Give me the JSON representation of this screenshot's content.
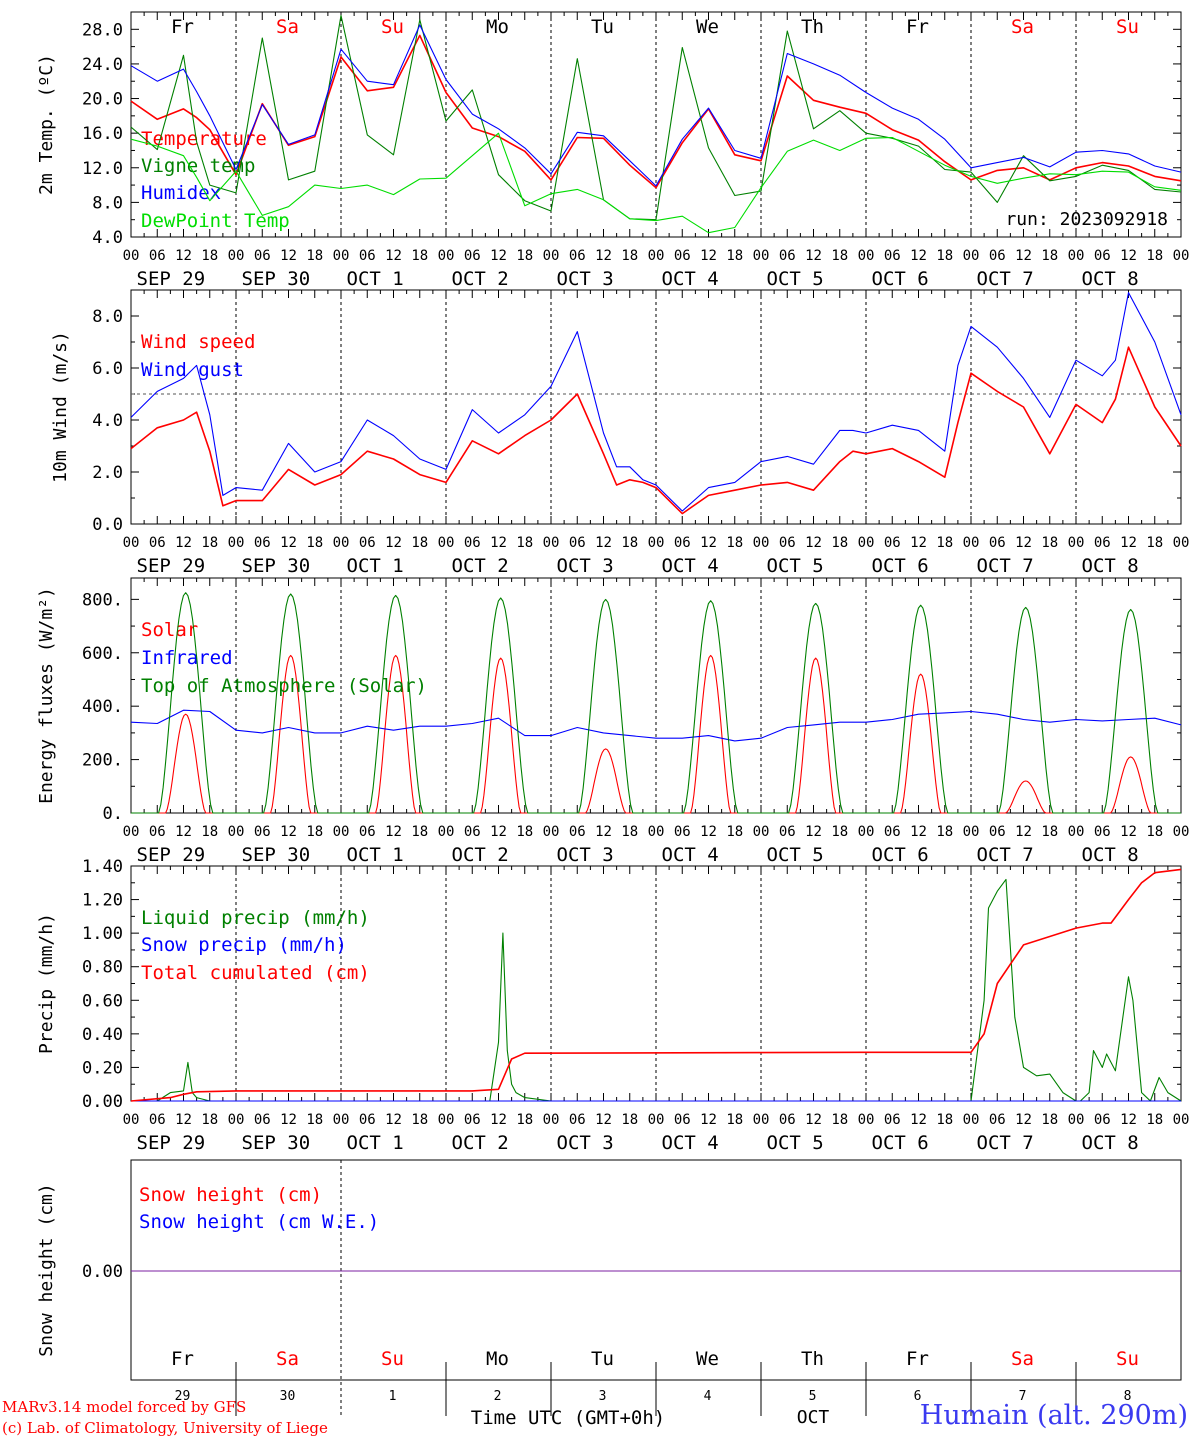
{
  "run_label": "run: 2023092918",
  "footer": {
    "credit1": "MARv3.14 model forced by GFS",
    "credit2": "(c) Lab. of Climatology, University of Liege",
    "time_axis_label": "Time UTC (GMT+0h)",
    "month_label": "OCT",
    "station": "Humain (alt. 290m)"
  },
  "colors": {
    "red": "#ff0000",
    "green": "#008000",
    "blue": "#0000ff",
    "lightgreen": "#00dd00",
    "weekend": "#ff0000",
    "weekday": "#000000",
    "snow_line": "#7b1fa2"
  },
  "days": [
    {
      "dow": "Fr",
      "date": "SEP 29",
      "num": "29",
      "weekend": false
    },
    {
      "dow": "Sa",
      "date": "SEP 30",
      "num": "30",
      "weekend": true
    },
    {
      "dow": "Su",
      "date": "OCT  1",
      "num": "1",
      "weekend": true
    },
    {
      "dow": "Mo",
      "date": "OCT  2",
      "num": "2",
      "weekend": false
    },
    {
      "dow": "Tu",
      "date": "OCT  3",
      "num": "3",
      "weekend": false
    },
    {
      "dow": "We",
      "date": "OCT  4",
      "num": "4",
      "weekend": false
    },
    {
      "dow": "Th",
      "date": "OCT  5",
      "num": "5",
      "weekend": false
    },
    {
      "dow": "Fr",
      "date": "OCT  6",
      "num": "6",
      "weekend": false
    },
    {
      "dow": "Sa",
      "date": "OCT  7",
      "num": "7",
      "weekend": true
    },
    {
      "dow": "Su",
      "date": "OCT  8",
      "num": "8",
      "weekend": true
    }
  ],
  "hour_labels": [
    "00",
    "06",
    "12",
    "18"
  ],
  "chart_data": [
    {
      "type": "line",
      "ylabel": "2m Temp. (ºC)",
      "ylim": [
        4,
        30
      ],
      "yticks": [
        "4.0",
        "8.0",
        "12.0",
        "16.0",
        "20.0",
        "24.0",
        "28.0"
      ],
      "ytick_values": [
        4,
        8,
        12,
        16,
        20,
        24,
        28
      ],
      "x_unit": "hours since Sep 29 00 UTC",
      "series": [
        {
          "name": "Temperature",
          "color": "#ff0000",
          "x": [
            0,
            6,
            12,
            15,
            18,
            24,
            30,
            36,
            42,
            48,
            54,
            60,
            66,
            72,
            78,
            84,
            90,
            96,
            102,
            108,
            114,
            120,
            126,
            132,
            138,
            144,
            150,
            156,
            162,
            168,
            174,
            180,
            186,
            192,
            198,
            204,
            210,
            216,
            222,
            228,
            234,
            240
          ],
          "y": [
            19.7,
            17.6,
            18.8,
            17.8,
            16.4,
            11.2,
            19.4,
            14.6,
            15.6,
            24.8,
            20.9,
            21.3,
            27.3,
            20.7,
            16.6,
            15.6,
            13.9,
            10.6,
            15.5,
            15.4,
            12.3,
            9.7,
            14.9,
            18.8,
            13.5,
            12.8,
            22.6,
            19.8,
            19.0,
            18.3,
            16.4,
            15.2,
            12.7,
            10.6,
            11.7,
            12.0,
            10.6,
            12.0,
            12.6,
            12.2,
            11.0,
            10.5
          ]
        },
        {
          "name": "Vigne temp",
          "color": "#008000",
          "x": [
            0,
            6,
            12,
            15,
            18,
            24,
            30,
            36,
            42,
            48,
            54,
            60,
            66,
            72,
            78,
            84,
            90,
            96,
            102,
            108,
            114,
            120,
            126,
            132,
            138,
            144,
            150,
            156,
            162,
            168,
            174,
            180,
            186,
            192,
            198,
            204,
            210,
            216,
            222,
            228,
            234,
            240
          ],
          "y": [
            16.7,
            14.1,
            25.0,
            15.0,
            10.0,
            9.1,
            27.0,
            10.6,
            11.6,
            29.6,
            15.8,
            13.5,
            29.1,
            17.4,
            21.0,
            11.2,
            8.2,
            7.0,
            24.6,
            8.3,
            6.1,
            6.0,
            25.9,
            14.3,
            8.8,
            9.3,
            27.8,
            16.5,
            18.6,
            16.0,
            15.4,
            14.5,
            11.8,
            11.5,
            8.0,
            13.4,
            10.5,
            11.0,
            12.3,
            11.7,
            9.5,
            9.2
          ]
        },
        {
          "name": "Humidex",
          "color": "#0000ff",
          "x": [
            0,
            6,
            12,
            15,
            18,
            24,
            30,
            36,
            42,
            48,
            54,
            60,
            66,
            72,
            78,
            84,
            90,
            96,
            102,
            108,
            114,
            120,
            126,
            132,
            138,
            144,
            150,
            156,
            162,
            168,
            174,
            180,
            186,
            192,
            198,
            204,
            210,
            216,
            222,
            228,
            234,
            240
          ],
          "y": [
            23.8,
            22.0,
            23.4,
            20.8,
            18.0,
            11.8,
            19.3,
            14.7,
            15.8,
            25.7,
            22.0,
            21.6,
            28.5,
            22.2,
            18.2,
            16.5,
            14.3,
            11.3,
            16.1,
            15.7,
            12.8,
            9.9,
            15.3,
            18.9,
            14.0,
            13.1,
            25.2,
            24.0,
            22.7,
            20.7,
            18.9,
            17.6,
            15.3,
            12.0,
            12.6,
            13.2,
            12.1,
            13.8,
            14.0,
            13.6,
            12.2,
            11.5
          ]
        },
        {
          "name": "DewPoint Temp",
          "color": "#00dd00",
          "x": [
            0,
            6,
            12,
            15,
            18,
            24,
            30,
            36,
            42,
            48,
            54,
            60,
            66,
            72,
            78,
            84,
            90,
            96,
            102,
            108,
            114,
            120,
            126,
            132,
            138,
            144,
            150,
            156,
            162,
            168,
            174,
            180,
            186,
            192,
            198,
            204,
            210,
            216,
            222,
            228,
            234,
            240
          ],
          "y": [
            15.3,
            14.5,
            13.4,
            10.9,
            8.2,
            11.6,
            6.5,
            7.5,
            10.0,
            9.6,
            10.0,
            8.9,
            10.7,
            10.8,
            13.4,
            16.0,
            7.6,
            9.0,
            9.5,
            8.3,
            6.1,
            5.9,
            6.4,
            4.5,
            5.1,
            9.7,
            13.9,
            15.2,
            14.0,
            15.4,
            15.5,
            13.9,
            12.3,
            11.0,
            10.2,
            10.8,
            11.3,
            11.2,
            11.6,
            11.5,
            9.8,
            9.4
          ]
        }
      ]
    },
    {
      "type": "line",
      "ylabel": "10m Wind (m/s)",
      "ylim": [
        0,
        9
      ],
      "yticks": [
        "0.0",
        "2.0",
        "4.0",
        "6.0",
        "8.0"
      ],
      "ytick_values": [
        0,
        2,
        4,
        6,
        8
      ],
      "ref_line": 5,
      "x_unit": "hours since Sep 29 00 UTC",
      "series": [
        {
          "name": "Wind speed",
          "color": "#ff0000",
          "x": [
            0,
            6,
            12,
            15,
            18,
            21,
            24,
            30,
            36,
            42,
            48,
            54,
            60,
            66,
            72,
            78,
            84,
            90,
            96,
            102,
            108,
            111,
            114,
            117,
            120,
            126,
            132,
            138,
            144,
            150,
            156,
            162,
            165,
            168,
            174,
            180,
            186,
            189,
            192,
            198,
            204,
            210,
            216,
            222,
            225,
            228,
            234,
            240
          ],
          "y": [
            2.9,
            3.7,
            4.0,
            4.3,
            2.8,
            0.7,
            0.9,
            0.9,
            2.1,
            1.5,
            1.9,
            2.8,
            2.5,
            1.9,
            1.6,
            3.2,
            2.7,
            3.4,
            4.0,
            5.0,
            2.7,
            1.5,
            1.7,
            1.6,
            1.4,
            0.4,
            1.1,
            1.3,
            1.5,
            1.6,
            1.3,
            2.4,
            2.8,
            2.7,
            2.9,
            2.4,
            1.8,
            3.9,
            5.8,
            5.1,
            4.5,
            2.7,
            4.6,
            3.9,
            4.8,
            6.8,
            4.5,
            3.0
          ]
        },
        {
          "name": "Wind gust",
          "color": "#0000ff",
          "x": [
            0,
            6,
            12,
            15,
            18,
            21,
            24,
            30,
            36,
            42,
            48,
            54,
            60,
            66,
            72,
            78,
            84,
            90,
            96,
            102,
            108,
            111,
            114,
            117,
            120,
            126,
            132,
            138,
            144,
            150,
            156,
            162,
            165,
            168,
            174,
            180,
            186,
            189,
            192,
            198,
            204,
            210,
            216,
            222,
            225,
            228,
            234,
            240
          ],
          "y": [
            4.1,
            5.1,
            5.6,
            6.1,
            4.2,
            1.1,
            1.4,
            1.3,
            3.1,
            2.0,
            2.4,
            4.0,
            3.4,
            2.5,
            2.1,
            4.4,
            3.5,
            4.2,
            5.3,
            7.4,
            3.5,
            2.2,
            2.2,
            1.7,
            1.5,
            0.5,
            1.4,
            1.6,
            2.4,
            2.6,
            2.3,
            3.6,
            3.6,
            3.5,
            3.8,
            3.6,
            2.8,
            6.1,
            7.6,
            6.8,
            5.6,
            4.1,
            6.3,
            5.7,
            6.3,
            8.9,
            7.0,
            4.2
          ]
        }
      ]
    },
    {
      "type": "line",
      "ylabel": "Energy fluxes (W/m²)",
      "ylim": [
        0,
        880
      ],
      "yticks": [
        "0.",
        "200.",
        "400.",
        "600.",
        "800."
      ],
      "ytick_values": [
        0,
        200,
        400,
        600,
        800
      ],
      "x_unit": "hours since Sep 29 00 UTC",
      "solar_peaks": [
        370,
        590,
        590,
        580,
        240,
        590,
        580,
        520,
        120,
        210
      ],
      "toa_peaks": [
        825,
        820,
        815,
        805,
        800,
        795,
        785,
        778,
        770,
        762
      ],
      "series": [
        {
          "name": "Solar",
          "color": "#ff0000",
          "note": "daily peaks listed in solar_peaks"
        },
        {
          "name": "Infrared",
          "color": "#0000ff",
          "x": [
            0,
            6,
            12,
            18,
            24,
            30,
            36,
            42,
            48,
            54,
            60,
            66,
            72,
            78,
            84,
            90,
            96,
            102,
            108,
            114,
            120,
            126,
            132,
            138,
            144,
            150,
            156,
            162,
            168,
            174,
            180,
            186,
            192,
            198,
            204,
            210,
            216,
            222,
            228,
            234,
            240
          ],
          "y": [
            340,
            335,
            385,
            380,
            310,
            300,
            320,
            300,
            300,
            325,
            310,
            325,
            325,
            335,
            355,
            290,
            290,
            320,
            300,
            290,
            280,
            280,
            290,
            270,
            280,
            320,
            330,
            340,
            340,
            350,
            370,
            375,
            380,
            370,
            350,
            340,
            350,
            345,
            350,
            355,
            330
          ]
        },
        {
          "name": "Top of Atmosphere (Solar)",
          "color": "#008000",
          "note": "daily peaks listed in toa_peaks"
        }
      ]
    },
    {
      "type": "line",
      "ylabel": "Precip (mm/h)",
      "ylim": [
        0,
        1.4
      ],
      "yticks": [
        "0.00",
        "0.20",
        "0.40",
        "0.60",
        "0.80",
        "1.00",
        "1.20",
        "1.40"
      ],
      "ytick_values": [
        0,
        0.2,
        0.4,
        0.6,
        0.8,
        1.0,
        1.2,
        1.4
      ],
      "x_unit": "hours since Sep 29 00 UTC",
      "series": [
        {
          "name": "Liquid precip (mm/h)",
          "color": "#008000",
          "x": [
            0,
            6,
            9,
            12,
            13,
            14,
            15,
            18,
            24,
            82,
            84,
            85,
            86,
            87,
            88,
            90,
            96,
            168,
            192,
            195,
            196,
            198,
            200,
            202,
            204,
            207,
            210,
            213,
            216,
            217,
            219,
            220,
            222,
            223,
            225,
            228,
            229,
            231,
            233,
            235,
            237,
            240
          ],
          "y": [
            0,
            0,
            0.05,
            0.06,
            0.23,
            0.05,
            0.02,
            0,
            0,
            0,
            0.35,
            1.0,
            0.3,
            0.1,
            0.05,
            0.02,
            0,
            0,
            0,
            0.6,
            1.15,
            1.25,
            1.32,
            0.5,
            0.2,
            0.15,
            0.16,
            0.05,
            0,
            0,
            0.05,
            0.3,
            0.2,
            0.28,
            0.18,
            0.74,
            0.6,
            0.05,
            0,
            0.14,
            0.05,
            0
          ]
        },
        {
          "name": "Snow precip (mm/h)",
          "color": "#0000ff",
          "x": [
            0,
            240
          ],
          "y": [
            0,
            0
          ]
        },
        {
          "name": "Total cumulated (cm)",
          "color": "#ff0000",
          "x": [
            0,
            9,
            12,
            15,
            24,
            48,
            78,
            84,
            87,
            90,
            168,
            192,
            195,
            198,
            204,
            216,
            222,
            224,
            228,
            231,
            234,
            240
          ],
          "y": [
            0,
            0.02,
            0.04,
            0.055,
            0.06,
            0.06,
            0.06,
            0.07,
            0.25,
            0.285,
            0.29,
            0.29,
            0.4,
            0.7,
            0.93,
            1.03,
            1.06,
            1.06,
            1.2,
            1.3,
            1.36,
            1.38
          ]
        }
      ]
    },
    {
      "type": "line",
      "ylabel": "Snow height (cm)",
      "yticks": [
        "0.00"
      ],
      "ytick_values": [
        0
      ],
      "x_unit": "hours since Sep 29 00 UTC",
      "series": [
        {
          "name": "Snow height (cm)",
          "color": "#ff0000",
          "x": [
            0,
            240
          ],
          "y": [
            0,
            0
          ]
        },
        {
          "name": "Snow height (cm W.E.)",
          "color": "#0000ff",
          "x": [
            0,
            240
          ],
          "y": [
            0,
            0
          ]
        }
      ]
    }
  ]
}
